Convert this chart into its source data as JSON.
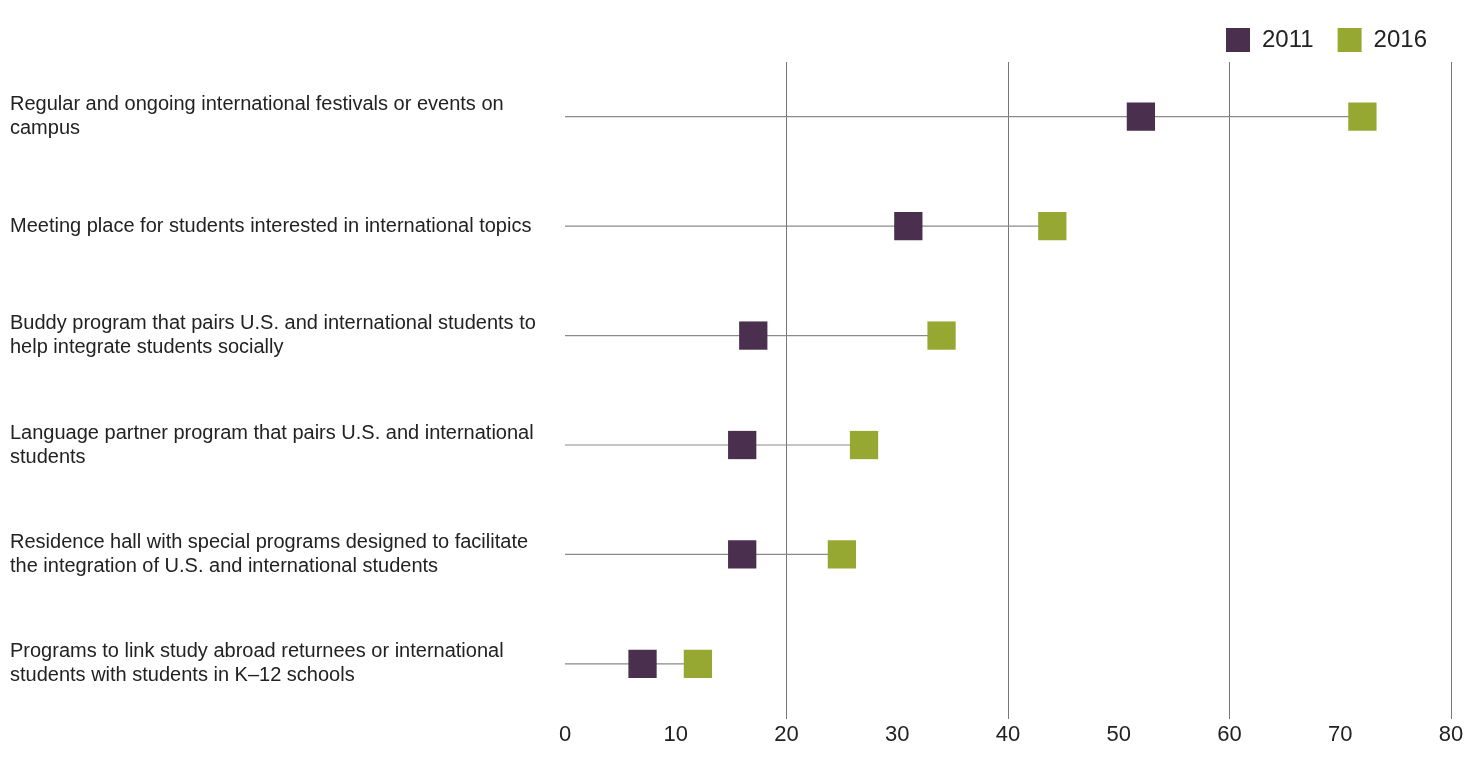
{
  "chart_data": {
    "type": "scatter",
    "orientation": "horizontal",
    "categories": [
      "Regular and ongoing international festivals or events on campus",
      "Meeting place for students interested in international topics",
      "Buddy program that pairs U.S. and international students to help integrate students socially",
      "Language partner program that pairs U.S. and international students",
      "Residence hall with special programs designed to facilitate the integration of U.S. and international students",
      "Programs to link study abroad returnees or international students with students in K–12 schools"
    ],
    "series": [
      {
        "name": "2011",
        "type": "scatter",
        "color": "#4b2f4e",
        "values": [
          52,
          31,
          17,
          16,
          16,
          7
        ]
      },
      {
        "name": "2016",
        "type": "lollipop",
        "color": "#97a832",
        "values": [
          72,
          44,
          34,
          27,
          25,
          12
        ]
      }
    ],
    "xlim": [
      0,
      80
    ],
    "xticks": [
      0,
      10,
      20,
      30,
      40,
      50,
      60,
      70,
      80
    ],
    "grid": "x",
    "legend": "top right",
    "marker": "square"
  }
}
